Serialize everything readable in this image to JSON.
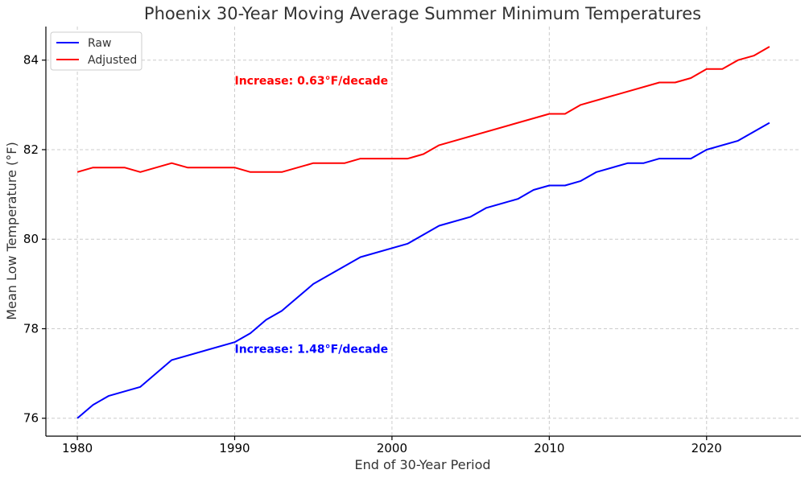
{
  "chart_data": {
    "type": "line",
    "title": "Phoenix 30-Year Moving Average Summer Minimum Temperatures",
    "xlabel": "End of 30-Year Period",
    "ylabel": "Mean Low Temperature (°F)",
    "xlim": [
      1978,
      2026
    ],
    "ylim": [
      75.6,
      84.75
    ],
    "xticks": [
      1980,
      1990,
      2000,
      2010,
      2020
    ],
    "yticks": [
      76,
      78,
      80,
      82,
      84
    ],
    "grid": true,
    "legend": "top-left",
    "series": [
      {
        "name": "Raw",
        "color": "#0000ff",
        "x": [
          1980,
          1981,
          1982,
          1984,
          1986,
          1990,
          1991,
          1992,
          1993,
          1995,
          1998,
          2001,
          2003,
          2005,
          2006,
          2008,
          2009,
          2010,
          2011,
          2012,
          2013,
          2015,
          2016,
          2017,
          2019,
          2020,
          2022,
          2024
        ],
        "values": [
          76.0,
          76.3,
          76.5,
          76.7,
          77.3,
          77.7,
          77.9,
          78.2,
          78.4,
          79.0,
          79.6,
          79.9,
          80.3,
          80.5,
          80.7,
          80.9,
          81.1,
          81.2,
          81.2,
          81.3,
          81.5,
          81.7,
          81.7,
          81.8,
          81.8,
          82.0,
          82.2,
          82.6
        ]
      },
      {
        "name": "Adjusted",
        "color": "#ff0000",
        "x": [
          1980,
          1981,
          1983,
          1984,
          1986,
          1987,
          1990,
          1991,
          1993,
          1995,
          1997,
          1998,
          2001,
          2002,
          2003,
          2010,
          2011,
          2012,
          2017,
          2018,
          2019,
          2020,
          2021,
          2022,
          2023,
          2024
        ],
        "values": [
          81.5,
          81.6,
          81.6,
          81.5,
          81.7,
          81.6,
          81.6,
          81.5,
          81.5,
          81.7,
          81.7,
          81.8,
          81.8,
          81.9,
          82.1,
          82.8,
          82.8,
          83.0,
          83.5,
          83.5,
          83.6,
          83.8,
          83.8,
          84.0,
          84.1,
          84.3
        ]
      }
    ],
    "annotations": [
      {
        "text": "Increase: 0.63°F/decade",
        "x": 1990,
        "y": 83.55,
        "color": "#ff0000"
      },
      {
        "text": "Increase: 1.48°F/decade",
        "x": 1990,
        "y": 77.55,
        "color": "#0000ff"
      }
    ]
  }
}
